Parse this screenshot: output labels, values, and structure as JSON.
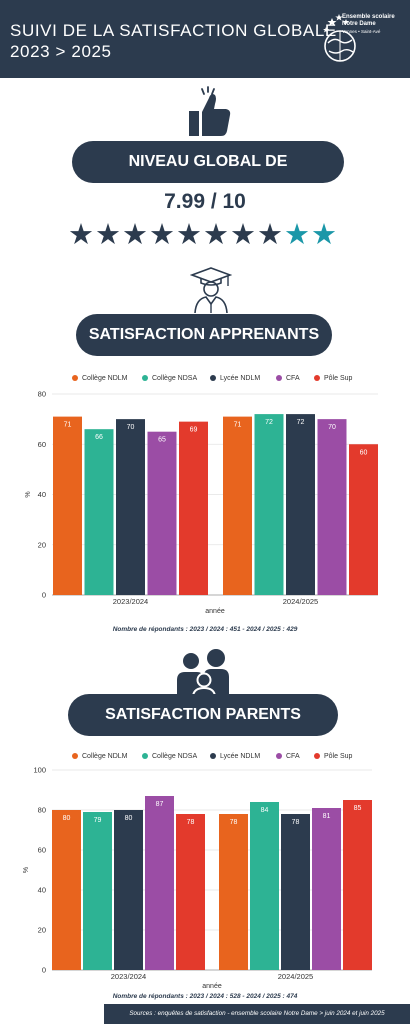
{
  "header": {
    "title_line1": "SUIVI DE LA SATISFACTION GLOBALE",
    "title_line2": "2023 > 2025",
    "logo_line1": "Ensemble scolaire",
    "logo_line2": "Notre Dame",
    "logo_line3": "Vannes • Saint-Avé"
  },
  "global": {
    "title": "NIVEAU GLOBAL DE SATISFACTION",
    "score": "7.99 / 10",
    "rating": 7.99,
    "stars_total": 10
  },
  "apprenants": {
    "title": "SATISFACTION APPRENANTS"
  },
  "parents": {
    "title": "SATISFACTION PARENTS"
  },
  "colors": {
    "navy": "#2c3b4e",
    "teal": "#1b97a8",
    "College NDLM": "#e8641e",
    "College NDSA": "#2db394",
    "Lycee NDLM": "#2c3b4e",
    "CFA": "#9b4da5",
    "Pole Sup": "#e33a2c"
  },
  "chart_data": [
    {
      "type": "bar",
      "categories": [
        "2023/2024",
        "2024/2025"
      ],
      "series": [
        {
          "name": "Collège NDLM",
          "values": [
            71,
            71
          ],
          "color": "#e8641e"
        },
        {
          "name": "Collège NDSA",
          "values": [
            66,
            72
          ],
          "color": "#2db394"
        },
        {
          "name": "Lycée NDLM",
          "values": [
            70,
            72
          ],
          "color": "#2c3b4e"
        },
        {
          "name": "CFA",
          "values": [
            65,
            70
          ],
          "color": "#9b4da5"
        },
        {
          "name": "Pôle Sup",
          "values": [
            69,
            60
          ],
          "color": "#e33a2c"
        }
      ],
      "yticks": [
        0,
        20,
        40,
        60,
        80
      ],
      "ylim": [
        0,
        80
      ],
      "xlabel": "année",
      "ylabel": "%",
      "note": "Nombre de répondants : 2023 / 2024 : 451 - 2024 / 2025 : 429",
      "legend": "top"
    },
    {
      "type": "bar",
      "categories": [
        "2023/2024",
        "2024/2025"
      ],
      "series": [
        {
          "name": "Collège NDLM",
          "values": [
            80,
            78
          ],
          "color": "#e8641e"
        },
        {
          "name": "Collège NDSA",
          "values": [
            79,
            84
          ],
          "color": "#2db394"
        },
        {
          "name": "Lycée NDLM",
          "values": [
            80,
            78
          ],
          "color": "#2c3b4e"
        },
        {
          "name": "CFA",
          "values": [
            87,
            81
          ],
          "color": "#9b4da5"
        },
        {
          "name": "Pôle Sup",
          "values": [
            78,
            85
          ],
          "color": "#e33a2c"
        }
      ],
      "yticks": [
        0,
        20,
        40,
        60,
        80,
        100
      ],
      "ylim": [
        0,
        100
      ],
      "xlabel": "année",
      "ylabel": "%",
      "note": "Nombre de répondants :  2023 / 2024 : 528 - 2024 / 2025 : 474",
      "legend": "top"
    }
  ],
  "footer": {
    "text": "Sources : enquêtes de satisfaction - ensemble scolaire Notre Dame > juin 2024 et juin 2025"
  }
}
